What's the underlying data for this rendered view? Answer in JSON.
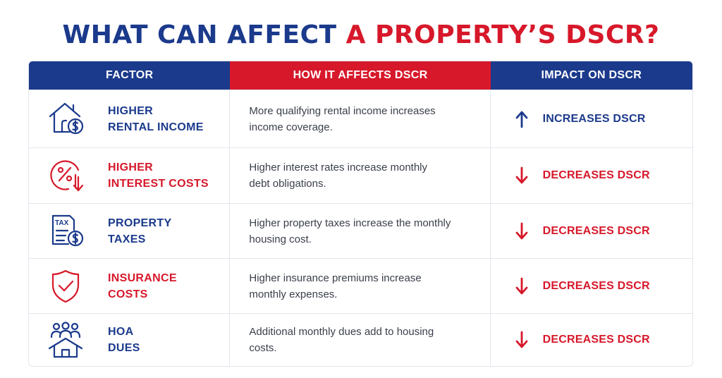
{
  "title": {
    "part1": "WHAT CAN AFFECT",
    "part2": "A PROPERTY’S DSCR?"
  },
  "header": {
    "factor": "FACTOR",
    "how": "HOW IT AFFECTS DSCR",
    "impact": "IMPACT ON DSCR"
  },
  "colors": {
    "blue": "#1b3a8c",
    "red": "#d7182a"
  },
  "rows": [
    {
      "icon": "house-dollar-icon",
      "line1": "HIGHER",
      "line2": "RENTAL INCOME",
      "desc1": "More qualifying rental income increases",
      "desc2": "income coverage.",
      "impact": "INCREASES DSCR",
      "direction": "up"
    },
    {
      "icon": "percent-down-icon",
      "line1": "HIGHER",
      "line2": "INTEREST COSTS",
      "desc1": "Higher interest rates increase monthly",
      "desc2": "debt obligations.",
      "impact": "DECREASES DSCR",
      "direction": "down"
    },
    {
      "icon": "tax-document-icon",
      "line1": "PROPERTY",
      "line2": "TAXES",
      "desc1": "Higher property taxes increase the monthly",
      "desc2": "housing cost.",
      "impact": "DECREASES DSCR",
      "direction": "down"
    },
    {
      "icon": "shield-check-icon",
      "line1": "INSURANCE",
      "line2": "COSTS",
      "desc1": "Higher insurance premiums increase",
      "desc2": "monthly expenses.",
      "impact": "DECREASES DSCR",
      "direction": "down"
    },
    {
      "icon": "community-house-icon",
      "line1": "HOA",
      "line2": "DUES",
      "desc1": "Additional monthly dues add to housing",
      "desc2": "costs.",
      "impact": "DECREASES DSCR",
      "direction": "down"
    }
  ],
  "tax_icon_text": "TAX"
}
